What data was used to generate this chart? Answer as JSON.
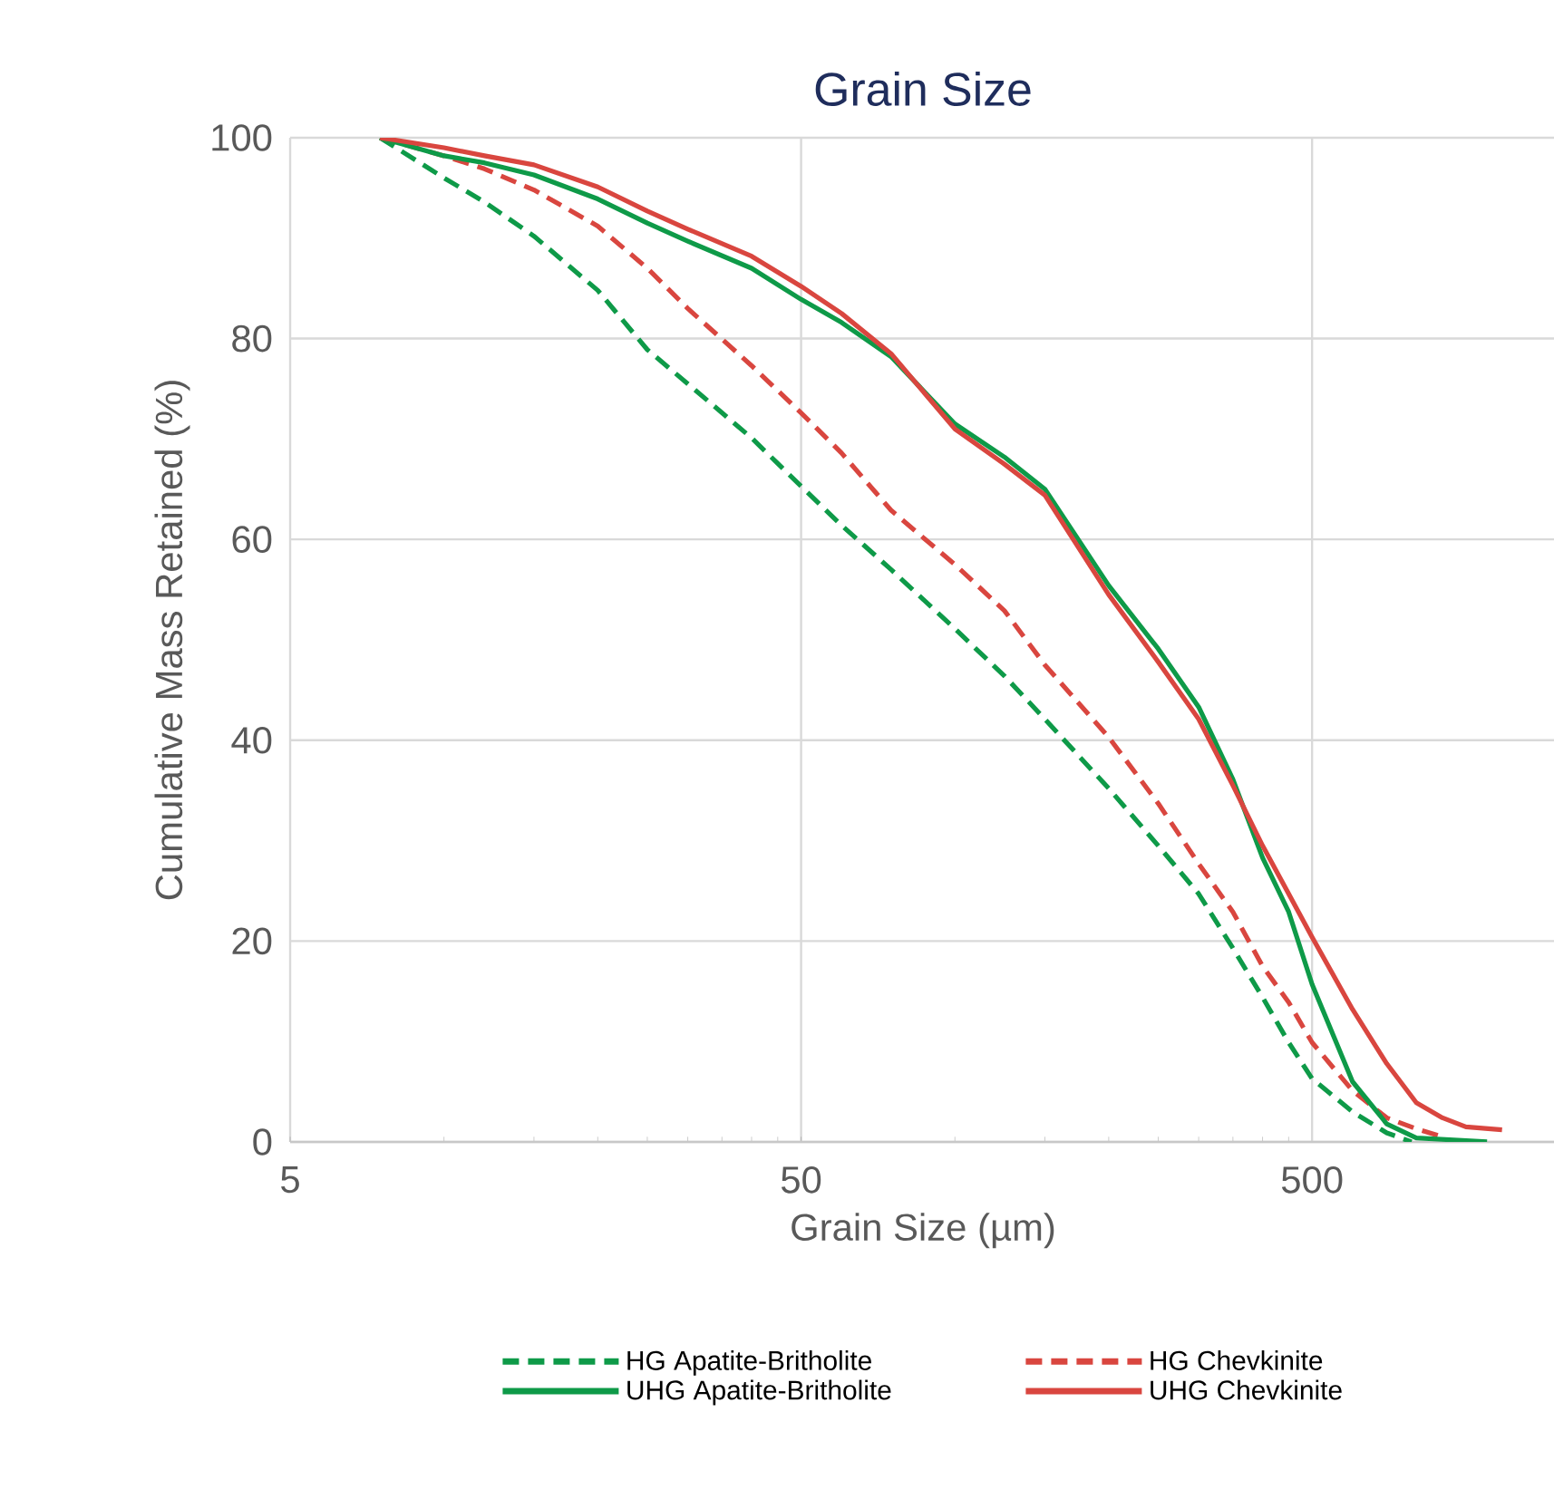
{
  "chart_data": {
    "type": "line",
    "title": "Grain Size",
    "xlabel": "Grain Size (µm)",
    "ylabel": "Cumulative Mass Retained (%)",
    "log": "x",
    "xlim": [
      5,
      1500
    ],
    "xticks": [
      5,
      50,
      500
    ],
    "ylim": [
      0,
      100
    ],
    "yticks": [
      0,
      20,
      40,
      60,
      80,
      100
    ],
    "grid": true,
    "legend": "bottom",
    "marker": "none",
    "series": [
      {
        "name": "HG Apatite-Britholite",
        "color": "#0e9a48",
        "line_style": "dashed",
        "x": [
          7.5,
          10,
          12,
          15,
          20,
          25,
          30,
          40,
          50,
          60,
          75,
          100,
          125,
          150,
          200,
          250,
          300,
          350,
          400,
          450,
          500,
          600,
          700,
          783
        ],
        "values": [
          100,
          96,
          93.6,
          90.2,
          84.8,
          78.9,
          75.5,
          70.1,
          65.3,
          61.4,
          57,
          51.1,
          46.4,
          42.1,
          35.2,
          29.5,
          24.7,
          19.3,
          14.4,
          9.9,
          6.3,
          3,
          0.9,
          0
        ]
      },
      {
        "name": "HG Chevkinite",
        "color": "#d9463f",
        "line_style": "dashed",
        "x": [
          7.5,
          10,
          12,
          15,
          20,
          25,
          30,
          40,
          50,
          60,
          75,
          100,
          125,
          150,
          200,
          250,
          300,
          350,
          400,
          450,
          500,
          600,
          700,
          800,
          900
        ],
        "values": [
          100,
          98.2,
          96.9,
          94.8,
          91.2,
          87,
          83,
          77.3,
          72.6,
          68.6,
          62.9,
          57.5,
          52.9,
          47.5,
          40.3,
          33.7,
          27.7,
          22.9,
          17.5,
          13.9,
          9.9,
          5.1,
          2.4,
          1.3,
          0.5
        ]
      },
      {
        "name": "UHG Apatite-Britholite",
        "color": "#0e9a48",
        "line_style": "solid",
        "x": [
          7.5,
          10,
          12,
          15,
          20,
          25,
          30,
          40,
          50,
          60,
          75,
          100,
          125,
          150,
          200,
          250,
          300,
          350,
          400,
          450,
          500,
          600,
          700,
          800,
          1100
        ],
        "values": [
          100,
          98.2,
          97.5,
          96.3,
          93.9,
          91.5,
          89.7,
          87,
          83.9,
          81.6,
          78.2,
          71.5,
          68.2,
          65,
          55.4,
          49.1,
          43.3,
          36.1,
          28.3,
          22.9,
          15.7,
          6,
          1.8,
          0.4,
          0
        ]
      },
      {
        "name": "UHG Chevkinite",
        "color": "#d9463f",
        "line_style": "solid",
        "x": [
          7.5,
          10,
          12,
          15,
          20,
          25,
          30,
          40,
          50,
          60,
          75,
          100,
          125,
          150,
          200,
          250,
          300,
          350,
          400,
          450,
          500,
          600,
          700,
          800,
          900,
          1000,
          1177
        ],
        "values": [
          100,
          99,
          98.2,
          97.3,
          95.1,
          92.7,
          90.9,
          88.2,
          85.2,
          82.5,
          78.5,
          71,
          67.5,
          64.4,
          54.5,
          47.8,
          42.1,
          35.5,
          29.5,
          24.7,
          20.4,
          13.2,
          7.8,
          3.9,
          2.4,
          1.5,
          1.2
        ]
      }
    ]
  }
}
